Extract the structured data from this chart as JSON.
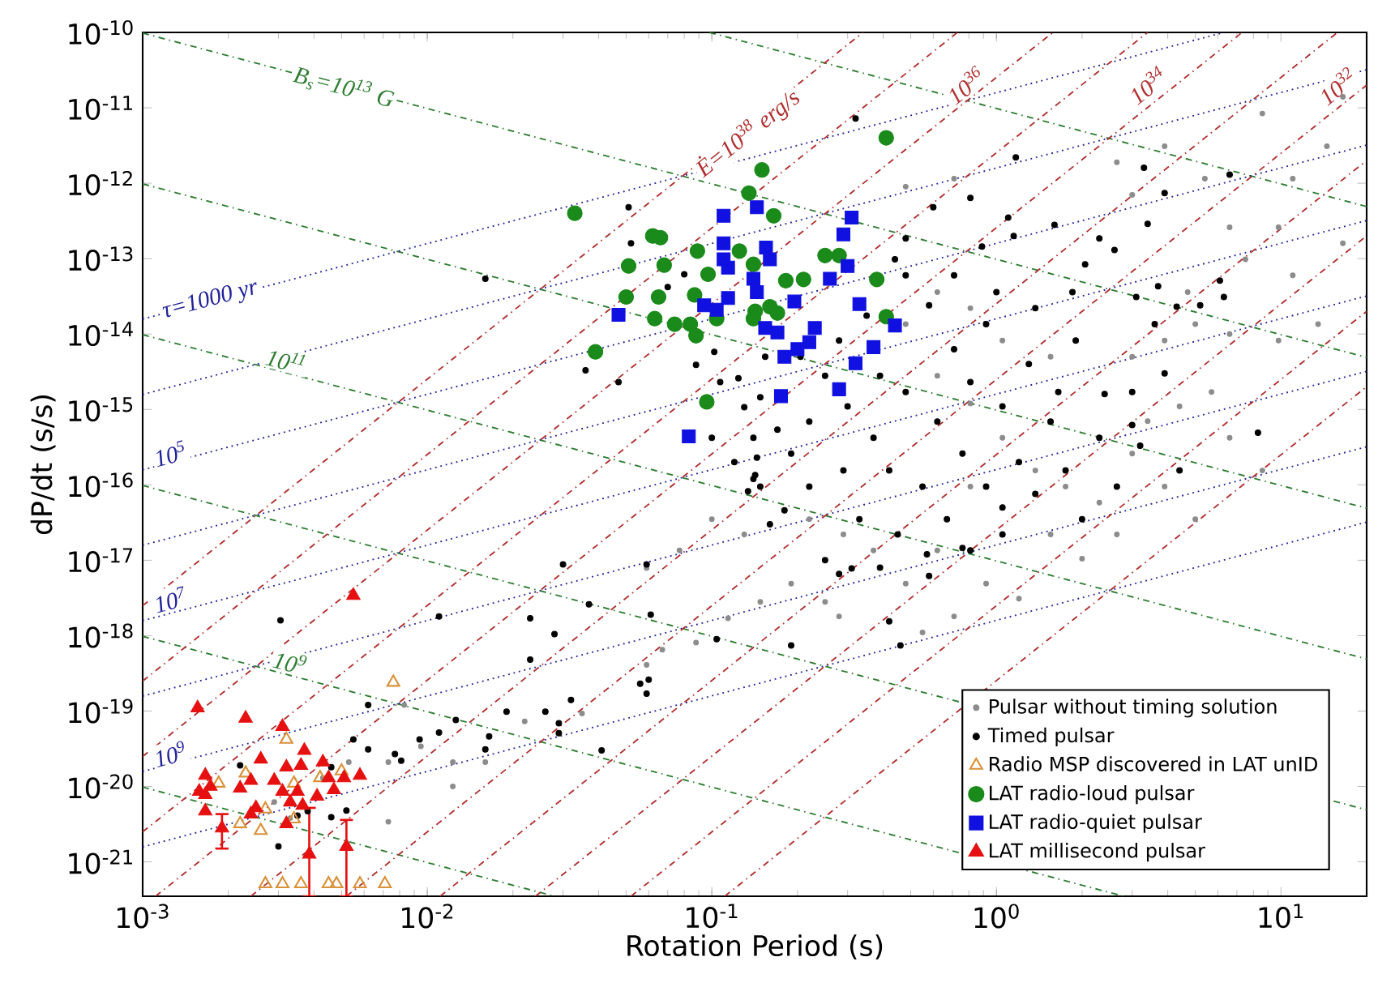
{
  "chart_data": {
    "type": "scatter",
    "xlabel": "Rotation Period (s)",
    "ylabel": "dP/dt (s/s)",
    "log": "xy",
    "legend": "bottom right",
    "xlim": [
      0.001,
      20
    ],
    "ylim": [
      3.5e-22,
      1e-10
    ],
    "xticks": [
      {
        "value": 0.001,
        "label": "10$^{-3}$"
      },
      {
        "value": 0.01,
        "label": "10$^{-2}$"
      },
      {
        "value": 0.1,
        "label": "10$^{-1}$"
      },
      {
        "value": 1,
        "label": "10$^{0}$"
      },
      {
        "value": 10,
        "label": "10$^{1}$"
      }
    ],
    "yticks": [
      {
        "value": 1e-21,
        "label": "10$^{-21}$"
      },
      {
        "value": 1e-20,
        "label": "10$^{-20}$"
      },
      {
        "value": 1e-19,
        "label": "10$^{-19}$"
      },
      {
        "value": 1e-18,
        "label": "10$^{-18}$"
      },
      {
        "value": 1e-17,
        "label": "10$^{-17}$"
      },
      {
        "value": 1e-16,
        "label": "10$^{-16}$"
      },
      {
        "value": 1e-15,
        "label": "10$^{-15}$"
      },
      {
        "value": 1e-14,
        "label": "10$^{-14}$"
      },
      {
        "value": 1e-13,
        "label": "10$^{-13}$"
      },
      {
        "value": 1e-12,
        "label": "10$^{-12}$"
      },
      {
        "value": 1e-11,
        "label": "10$^{-11}$"
      },
      {
        "value": 1e-10,
        "label": "10$^{-10}$"
      }
    ],
    "annotations": [
      {
        "text": "B$_{s}$=10$^{13}$ G",
        "x": 0.0051,
        "y": 1.9e-11
      },
      {
        "text": "10$^{11}$",
        "x": 0.0032,
        "y": 4.5e-15
      },
      {
        "text": "10$^{9}$",
        "x": 0.0033,
        "y": 4.5e-19
      },
      {
        "text": "τ=1000 yr",
        "x": 0.00173,
        "y": 2.8e-14
      },
      {
        "text": "10$^{5}$",
        "x": 0.00125,
        "y": 2.6e-16
      },
      {
        "text": "10$^{7}$",
        "x": 0.00125,
        "y": 3e-18
      },
      {
        "text": "10$^{9}$",
        "x": 0.00125,
        "y": 2.7e-20
      },
      {
        "text": "Ė=10$^{38}$ erg/s",
        "x": 0.134,
        "y": 4.6e-12
      },
      {
        "text": "10$^{36}$",
        "x": 0.78,
        "y": 2e-11
      },
      {
        "text": "10$^{34}$",
        "x": 3.4,
        "y": 2e-11
      },
      {
        "text": "10$^{32}$",
        "x": 15.8,
        "y": 1.95e-11
      }
    ],
    "series": [
      {
        "name": "Pulsar without timing solution",
        "marker": "circle",
        "color": "#8c8c8c",
        "x": [
          0.48,
          0.62,
          0.81,
          1.05,
          1.37,
          1.75,
          2.3,
          3.0,
          3.9,
          5.0,
          0.81,
          0.62,
          0.48,
          0.37,
          0.29,
          0.22,
          0.92,
          1.2,
          0.71,
          0.55,
          1.55,
          2.0,
          2.65,
          3.4,
          4.4,
          5.7,
          6.6,
          8.6,
          1.55,
          1.05,
          0.81,
          0.62,
          3.0,
          3.9,
          5.0,
          7.5,
          9.8,
          11,
          14.5,
          16.5,
          8.6,
          6.6,
          5.4,
          3.9,
          3.0,
          2.65,
          0.71,
          0.48,
          0.0043,
          0.0053,
          0.0073,
          0.0095,
          0.0123,
          0.016,
          0.022,
          0.035,
          0.059,
          0.067,
          0.088,
          0.114,
          0.148,
          0.19,
          0.25,
          0.28,
          0.0073,
          0.0033,
          0.0029,
          0.0123,
          0.0083,
          0.059,
          0.077,
          0.1,
          0.13,
          11,
          13.5,
          16.5,
          9.8,
          6.6,
          4.7
        ],
        "values": [
          1.35e-14,
          2.8e-15,
          1.2e-15,
          4.2e-16,
          1.55e-16,
          9.5e-17,
          5.8e-17,
          2.6e-16,
          9.5e-17,
          3.5e-17,
          9.5e-17,
          1.35e-17,
          4.9e-18,
          1.35e-17,
          2.2e-17,
          3.5e-17,
          4.9e-18,
          3.1e-18,
          1.8e-18,
          1.1e-18,
          2.2e-17,
          1.05e-17,
          2.2e-17,
          7e-16,
          1.1e-15,
          1.7e-15,
          4.2e-16,
          1.55e-16,
          5e-15,
          8.2e-15,
          2.2e-14,
          3.6e-14,
          5e-15,
          8.2e-15,
          1.35e-14,
          9.8e-14,
          2.6e-13,
          1.15e-12,
          3.1e-12,
          1.4e-11,
          8.4e-12,
          2.6e-13,
          1.15e-12,
          3.1e-12,
          7e-13,
          1.9e-12,
          1.15e-12,
          9e-13,
          1.3e-20,
          2.1e-20,
          2.1e-20,
          3.4e-20,
          2.1e-20,
          2.1e-20,
          7.3e-20,
          9.3e-20,
          4.1e-19,
          6.5e-19,
          8.1e-19,
          1.7e-18,
          2.8e-18,
          4.9e-18,
          2.8e-18,
          1.8e-18,
          3.4e-21,
          3.8e-21,
          6.2e-21,
          1e-20,
          1.2e-19,
          7.9e-18,
          1.35e-17,
          3.5e-17,
          2.2e-17,
          6e-14,
          1.35e-14,
          1.6e-13,
          8.2e-15,
          1e-14,
          3.6e-14
        ]
      },
      {
        "name": "Timed pulsar",
        "marker": "circle",
        "color": "#000000",
        "x": [
          0.00305,
          0.011,
          0.023,
          0.061,
          0.134,
          0.14,
          0.144,
          0.16,
          0.059,
          0.037,
          0.028,
          0.023,
          0.03,
          0.104,
          0.056,
          0.06,
          0.059,
          0.032,
          0.026,
          0.019,
          0.0165,
          0.016,
          0.0126,
          0.011,
          0.0094,
          0.0077,
          0.0081,
          0.0062,
          0.0055,
          0.0062,
          0.041,
          0.029,
          0.029,
          0.0022,
          0.0046,
          0.0046,
          0.0052,
          0.0038,
          0.0035,
          0.003,
          0.016,
          0.036,
          0.047,
          0.051,
          0.052,
          0.08,
          0.07,
          0.142,
          0.13,
          0.102,
          0.124,
          0.154,
          0.32,
          1.17,
          0.81,
          3.3,
          3.9,
          3.4,
          6.6,
          0.6,
          1.1,
          1.6,
          2.3,
          2.6,
          2.05,
          1.15,
          0.89,
          6.1,
          3.7,
          4.3,
          5.2,
          6.3,
          3.1,
          1.85,
          8.3,
          2.4,
          3.0,
          0.48,
          0.44,
          0.48,
          0.58,
          0.71,
          0.81,
          0.92,
          1.05,
          1.3,
          1.55,
          1.9,
          0.62,
          0.48,
          0.39,
          0.76,
          0.92,
          1.2,
          1.37,
          1.75,
          2.3,
          3.0,
          2.65,
          2.0,
          1.05,
          0.81,
          0.67,
          0.55,
          0.42,
          0.37,
          0.3,
          0.25,
          0.22,
          0.29,
          0.33,
          0.45,
          0.58,
          0.22,
          0.19,
          0.17,
          0.14,
          0.12,
          0.148,
          0.18,
          0.25,
          0.39,
          0.28,
          0.35,
          0.205,
          0.71,
          1.0,
          1.37,
          1.65,
          3.2,
          3.9,
          3.6,
          4.4,
          0.148,
          0.107,
          0.088,
          0.1,
          0.42,
          0.46,
          0.19,
          0.28,
          0.31,
          0.57,
          0.76,
          1.05
        ],
        "values": [
          1.6e-18,
          1.8e-18,
          1.7e-18,
          1.9e-18,
          8.2e-17,
          1.2e-16,
          2.3e-16,
          3e-17,
          8.8e-18,
          2.6e-18,
          1.05e-18,
          4.8e-19,
          8.8e-18,
          9e-19,
          2.3e-19,
          2.6e-19,
          1.7e-19,
          1.4e-19,
          9.8e-20,
          9.8e-20,
          4.6e-20,
          3.1e-20,
          7.6e-20,
          5.2e-20,
          4.2e-20,
          2.7e-20,
          2.2e-20,
          3.1e-20,
          4.2e-20,
          1.2e-19,
          3e-20,
          6.9e-20,
          5.1e-20,
          1.9e-20,
          1.8e-20,
          3.9e-21,
          4.8e-21,
          4.7e-21,
          4.1e-21,
          1.6e-21,
          5.4e-14,
          3.3e-15,
          2.3e-15,
          4.8e-13,
          1.6e-13,
          6.2e-14,
          4.2e-14,
          1.35e-16,
          1.07e-15,
          5.8e-15,
          2.6e-15,
          5e-15,
          7.2e-12,
          2.2e-12,
          6.4e-13,
          1.6e-12,
          7.4e-13,
          2.9e-13,
          1.3e-12,
          4.8e-13,
          3.5e-13,
          2.8e-13,
          1.85e-13,
          1.3e-13,
          8.4e-14,
          2e-13,
          1.45e-13,
          5.1e-14,
          4.3e-14,
          2.3e-14,
          2.4e-14,
          3.1e-14,
          3.1e-14,
          3.6e-14,
          4.9e-16,
          1.6e-15,
          6.2e-16,
          1.85e-13,
          9.8e-14,
          6e-14,
          2.4e-14,
          6.3e-15,
          2.3e-15,
          1.35e-14,
          1.1e-15,
          4e-15,
          6.9e-16,
          8.2e-15,
          6.9e-16,
          1.7e-15,
          2.8e-15,
          2.6e-16,
          9.5e-17,
          2e-16,
          7.6e-17,
          1.55e-16,
          4.2e-16,
          1.7e-15,
          9.5e-17,
          3.5e-17,
          2.2e-17,
          1.35e-17,
          3.5e-17,
          9.5e-17,
          1.55e-16,
          4.2e-16,
          1.1e-15,
          2.8e-15,
          6.9e-16,
          1.55e-16,
          3.5e-17,
          2.2e-17,
          6.2e-18,
          9.5e-17,
          2.6e-16,
          5.4e-16,
          4.2e-16,
          2e-16,
          9.5e-17,
          4.6e-17,
          1e-17,
          8e-18,
          8.2e-15,
          1.75e-14,
          5e-15,
          6e-14,
          3.6e-14,
          2.2e-14,
          1.7e-15,
          3.3e-16,
          3e-15,
          1.35e-14,
          1.55e-16,
          1.45e-15,
          2.3e-15,
          3.9e-15,
          4.2e-16,
          1.55e-18,
          7.4e-19,
          7.4e-19,
          6.6e-18,
          7.8e-18,
          1.2e-17,
          1.45e-17,
          5e-17
        ]
      },
      {
        "name": "Radio MSP discovered in LAT unID",
        "marker": "triangle",
        "color": "#d9913a",
        "x": [
          0.0076,
          0.0032,
          0.0023,
          0.00185,
          0.0042,
          0.0034,
          0.0027,
          0.0022,
          0.0026,
          0.0034,
          0.0027,
          0.0031,
          0.0036,
          0.0045,
          0.0048,
          0.0058,
          0.0071,
          0.005
        ],
        "values": [
          2.4e-19,
          4.2e-20,
          1.5e-20,
          1.1e-20,
          1.3e-20,
          1.1e-20,
          5e-21,
          3.2e-21,
          2.6e-21,
          3.7e-21,
          5.1e-22,
          5.1e-22,
          5.1e-22,
          5.1e-22,
          5.1e-22,
          5.1e-22,
          5.1e-22,
          1.6e-20
        ]
      },
      {
        "name": "LAT radio-loud pulsar",
        "marker": "circle",
        "color": "#1a8a1a",
        "x": [
          0.033,
          0.15,
          0.135,
          0.062,
          0.066,
          0.051,
          0.068,
          0.089,
          0.097,
          0.125,
          0.14,
          0.05,
          0.065,
          0.087,
          0.063,
          0.074,
          0.084,
          0.104,
          0.088,
          0.142,
          0.14,
          0.039,
          0.096,
          0.16,
          0.165,
          0.41,
          0.182,
          0.21,
          0.25,
          0.28,
          0.38,
          0.17,
          0.41
        ],
        "values": [
          4e-13,
          1.5e-12,
          7.4e-13,
          2e-13,
          1.9e-13,
          8e-14,
          8.2e-14,
          1.26e-13,
          6.2e-14,
          1.26e-13,
          8.4e-14,
          3.1e-14,
          3.1e-14,
          3.3e-14,
          1.6e-14,
          1.35e-14,
          1.35e-14,
          1.6e-14,
          9.5e-15,
          2e-14,
          1.6e-14,
          5.8e-15,
          1.26e-15,
          2.3e-14,
          3.7e-13,
          4e-12,
          5.1e-14,
          5.3e-14,
          1.1e-13,
          1.1e-13,
          5.3e-14,
          1.9e-14,
          1.7e-14
        ]
      },
      {
        "name": "LAT radio-quiet pulsar",
        "marker": "square",
        "color": "#1010e0",
        "x": [
          0.047,
          0.11,
          0.144,
          0.11,
          0.11,
          0.114,
          0.155,
          0.16,
          0.14,
          0.144,
          0.094,
          0.104,
          0.114,
          0.154,
          0.083,
          0.31,
          0.29,
          0.3,
          0.26,
          0.195,
          0.33,
          0.17,
          0.44,
          0.23,
          0.22,
          0.2,
          0.18,
          0.37,
          0.32,
          0.28,
          0.175
        ],
        "values": [
          1.8e-14,
          3.7e-13,
          4.8e-13,
          1.6e-13,
          9.8e-14,
          7.6e-14,
          1.4e-13,
          9.8e-14,
          5.4e-14,
          3.6e-14,
          2.4e-14,
          2.1e-14,
          3e-14,
          1.2e-14,
          4.4e-16,
          3.5e-13,
          2.1e-13,
          8e-14,
          5.4e-14,
          2.7e-14,
          2.5e-14,
          1.05e-14,
          1.3e-14,
          1.2e-14,
          7.8e-15,
          6.3e-15,
          5e-15,
          6.7e-15,
          4.1e-15,
          1.85e-15,
          1.5e-15
        ]
      },
      {
        "name": "LAT millisecond pulsar",
        "marker": "triangle",
        "color": "#e61010",
        "x": [
          0.0055,
          0.00156,
          0.0023,
          0.0031,
          0.0037,
          0.0026,
          0.0032,
          0.00166,
          0.00173,
          0.0022,
          0.0024,
          0.0029,
          0.0036,
          0.0043,
          0.0045,
          0.0051,
          0.0058,
          0.0031,
          0.0035,
          0.0041,
          0.0047,
          0.00166,
          0.0025,
          0.0024,
          0.0033,
          0.00365,
          0.00166,
          0.0032,
          0.0019,
          0.00385,
          0.0052,
          0.00158
        ],
        "values": [
          3.4e-18,
          1.1e-19,
          8e-20,
          6.2e-20,
          3e-20,
          2.3e-20,
          1.8e-20,
          1.4e-20,
          1e-20,
          9.5e-21,
          1.2e-20,
          1.2e-20,
          1.9e-20,
          2.1e-20,
          1.3e-20,
          1.3e-20,
          1.4e-20,
          8.6e-21,
          8.6e-21,
          7.4e-21,
          9e-21,
          7.8e-21,
          5.2e-21,
          4.3e-21,
          6.2e-21,
          5.6e-21,
          4.7e-21,
          3.2e-21,
          2.8e-21,
          1.26e-21,
          1.6e-21,
          8.6e-21
        ],
        "errors": [
          null,
          null,
          null,
          null,
          null,
          null,
          null,
          null,
          null,
          null,
          null,
          null,
          null,
          null,
          null,
          null,
          null,
          null,
          null,
          null,
          null,
          null,
          null,
          null,
          null,
          null,
          null,
          null,
          [
            1.5e-21,
            4.3e-21
          ],
          [
            3.5e-22,
            5.2e-21
          ],
          [
            3.5e-22,
            3.6e-21
          ],
          null
        ]
      },
      {
        "type": "line",
        "color": "#2e7d32",
        "line_style": "dashed",
        "x": [
          0.098,
          20
        ],
        "values": [
          1e-10,
          4.9e-13
        ]
      },
      {
        "type": "line",
        "color": "#2e7d32",
        "line_style": "dashed",
        "x": [
          0.001,
          20
        ],
        "values": [
          9.8e-11,
          4.9e-15
        ]
      },
      {
        "type": "line",
        "color": "#2e7d32",
        "line_style": "dashed",
        "x": [
          0.001,
          20
        ],
        "values": [
          9.8e-13,
          4.9e-17
        ]
      },
      {
        "type": "line",
        "color": "#2e7d32",
        "line_style": "dashed",
        "x": [
          0.001,
          20
        ],
        "values": [
          9.8e-15,
          4.9e-19
        ]
      },
      {
        "type": "line",
        "color": "#2e7d32",
        "line_style": "dashed",
        "x": [
          0.001,
          20
        ],
        "values": [
          9.8e-17,
          4.9e-21
        ]
      },
      {
        "type": "line",
        "color": "#2e7d32",
        "line_style": "dashed",
        "x": [
          0.001,
          2.8
        ],
        "values": [
          9.8e-19,
          3.5e-22
        ]
      },
      {
        "type": "line",
        "color": "#2e7d32",
        "line_style": "dashed",
        "x": [
          0.001,
          0.028
        ],
        "values": [
          9.8e-21,
          3.5e-22
        ]
      },
      {
        "type": "line",
        "color": "#22229a",
        "line_style": "dotted",
        "x": [
          0.001,
          6.3
        ],
        "values": [
          1.58e-14,
          1e-10
        ]
      },
      {
        "type": "line",
        "color": "#22229a",
        "line_style": "dotted",
        "x": [
          0.001,
          20
        ],
        "values": [
          1.58e-15,
          3.2e-11
        ]
      },
      {
        "type": "line",
        "color": "#22229a",
        "line_style": "dotted",
        "x": [
          0.001,
          20
        ],
        "values": [
          1.58e-16,
          3.2e-12
        ]
      },
      {
        "type": "line",
        "color": "#22229a",
        "line_style": "dotted",
        "x": [
          0.001,
          20
        ],
        "values": [
          1.58e-17,
          3.2e-13
        ]
      },
      {
        "type": "line",
        "color": "#22229a",
        "line_style": "dotted",
        "x": [
          0.001,
          20
        ],
        "values": [
          1.58e-18,
          3.2e-14
        ]
      },
      {
        "type": "line",
        "color": "#22229a",
        "line_style": "dotted",
        "x": [
          0.001,
          20
        ],
        "values": [
          1.58e-19,
          3.2e-15
        ]
      },
      {
        "type": "line",
        "color": "#22229a",
        "line_style": "dotted",
        "x": [
          0.001,
          20
        ],
        "values": [
          1.58e-20,
          3.2e-16
        ]
      },
      {
        "type": "line",
        "color": "#22229a",
        "line_style": "dotted",
        "x": [
          0.001,
          20
        ],
        "values": [
          1.58e-21,
          3.2e-17
        ]
      },
      {
        "type": "line",
        "color": "#b03030",
        "line_style": "dashed",
        "x": [
          0.001,
          0.34
        ],
        "values": [
          2.5e-18,
          1e-10
        ]
      },
      {
        "type": "line",
        "color": "#b03030",
        "line_style": "dashed",
        "x": [
          0.001,
          0.73
        ],
        "values": [
          2.5e-19,
          1e-10
        ]
      },
      {
        "type": "line",
        "color": "#b03030",
        "line_style": "dashed",
        "x": [
          0.001,
          1.58
        ],
        "values": [
          2.5e-20,
          1e-10
        ]
      },
      {
        "type": "line",
        "color": "#b03030",
        "line_style": "dashed",
        "x": [
          0.001,
          3.4
        ],
        "values": [
          2.5e-21,
          1e-10
        ]
      },
      {
        "type": "line",
        "color": "#b03030",
        "line_style": "dashed",
        "x": [
          0.00111,
          7.3
        ],
        "values": [
          3.5e-22,
          1e-10
        ]
      },
      {
        "type": "line",
        "color": "#b03030",
        "line_style": "dashed",
        "x": [
          0.0024,
          15.8
        ],
        "values": [
          3.5e-22,
          1e-10
        ]
      },
      {
        "type": "line",
        "color": "#b03030",
        "line_style": "dashed",
        "x": [
          0.0052,
          20
        ],
        "values": [
          3.5e-22,
          2e-11
        ]
      },
      {
        "type": "line",
        "color": "#b03030",
        "line_style": "dashed",
        "x": [
          0.0111,
          20
        ],
        "values": [
          3.5e-22,
          2e-12
        ]
      },
      {
        "type": "line",
        "color": "#b03030",
        "line_style": "dashed",
        "x": [
          0.024,
          20
        ],
        "values": [
          3.5e-22,
          2e-13
        ]
      },
      {
        "type": "line",
        "color": "#b03030",
        "line_style": "dashed",
        "x": [
          0.052,
          20
        ],
        "values": [
          3.5e-22,
          2e-14
        ]
      },
      {
        "type": "line",
        "color": "#b03030",
        "line_style": "dashed",
        "x": [
          0.111,
          20
        ],
        "values": [
          3.5e-22,
          2e-15
        ]
      }
    ]
  }
}
